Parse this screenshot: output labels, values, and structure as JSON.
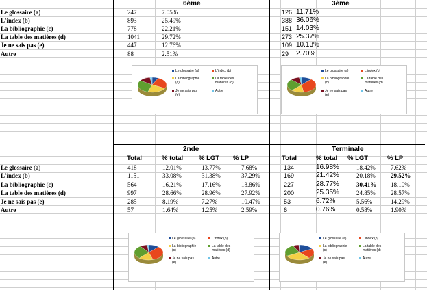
{
  "sections": {
    "sixieme": "6ème",
    "troisieme": "3ème",
    "seconde": "2nde",
    "terminale": "Terminale"
  },
  "row_labels": [
    "Le glossaire (a)",
    "L'index (b)",
    "La bibliographie (c)",
    "La table des matières (d)",
    "Je ne sais pas (e)",
    "Autre"
  ],
  "top": {
    "sixieme": [
      {
        "n": "247",
        "pct": "7.05%"
      },
      {
        "n": "893",
        "pct": "25.49%"
      },
      {
        "n": "778",
        "pct": "22.21%"
      },
      {
        "n": "1041",
        "pct": "29.72%"
      },
      {
        "n": "447",
        "pct": "12.76%"
      },
      {
        "n": "88",
        "pct": "2.51%"
      }
    ],
    "troisieme": [
      {
        "n": "126",
        "pct": "11.71%"
      },
      {
        "n": "388",
        "pct": "36.06%"
      },
      {
        "n": "151",
        "pct": "14.03%"
      },
      {
        "n": "273",
        "pct": "25.37%"
      },
      {
        "n": "109",
        "pct": "10.13%"
      },
      {
        "n": "29",
        "pct": "2.70%"
      }
    ]
  },
  "bottom_headers": {
    "seconde": [
      "Total",
      "% total",
      "% LGT",
      "% LP"
    ],
    "terminale": [
      "Total",
      "% total",
      "% LGT",
      "% LP"
    ]
  },
  "bottom": {
    "seconde": [
      {
        "total": "418",
        "pct_total": "12.01%",
        "lgt": "13.77%",
        "lp": "7.68%"
      },
      {
        "total": "1151",
        "pct_total": "33.08%",
        "lgt": "31.38%",
        "lp": "37.29%"
      },
      {
        "total": "564",
        "pct_total": "16.21%",
        "lgt": "17.16%",
        "lp": "13.86%"
      },
      {
        "total": "997",
        "pct_total": "28.66%",
        "lgt": "28.96%",
        "lp": "27.92%"
      },
      {
        "total": "285",
        "pct_total": "8.19%",
        "lgt": "7.27%",
        "lp": "10.47%"
      },
      {
        "total": "57",
        "pct_total": "1.64%",
        "lgt": "1.25%",
        "lp": "2.59%"
      }
    ],
    "terminale": [
      {
        "total": "134",
        "pct_total": "16.98%",
        "lgt": "18.42%",
        "lp": "7.62%"
      },
      {
        "total": "169",
        "pct_total": "21.42%",
        "lgt": "20.18%",
        "lp": "29.52%"
      },
      {
        "total": "227",
        "pct_total": "28.77%",
        "lgt": "30.41%",
        "lp": "18.10%"
      },
      {
        "total": "200",
        "pct_total": "25.35%",
        "lgt": "24.85%",
        "lp": "28.57%"
      },
      {
        "total": "53",
        "pct_total": "6.72%",
        "lgt": "5.56%",
        "lp": "14.29%"
      },
      {
        "total": "6",
        "pct_total": "0.76%",
        "lgt": "0.58%",
        "lp": "1.90%"
      }
    ]
  },
  "legend": {
    "a": "Le glossaire (a)",
    "b": "L'index (b)",
    "c1": "La bibliographie",
    "c2": "(c)",
    "d1": "La table des",
    "d2": "matières (d)",
    "e1": "Je ne sais pas",
    "e2": "(e)",
    "f": "Autre"
  },
  "colors": {
    "a": "#1f4e9a",
    "b": "#e8471d",
    "c": "#f3d046",
    "d": "#5f9e2f",
    "e": "#7a1020",
    "f": "#6ec4e8"
  },
  "chart_data": [
    {
      "type": "pie",
      "title": "",
      "categories": [
        "Le glossaire (a)",
        "L'index (b)",
        "La bibliographie (c)",
        "La table des matières (d)",
        "Je ne sais pas (e)",
        "Autre"
      ],
      "values": [
        7.05,
        25.49,
        22.21,
        29.72,
        12.76,
        2.51
      ]
    },
    {
      "type": "pie",
      "title": "",
      "categories": [
        "Le glossaire (a)",
        "L'index (b)",
        "La bibliographie (c)",
        "La table des matières (d)",
        "Je ne sais pas (e)",
        "Autre"
      ],
      "values": [
        11.71,
        36.06,
        14.03,
        25.37,
        10.13,
        2.7
      ]
    },
    {
      "type": "pie",
      "title": "",
      "categories": [
        "Le glossaire (a)",
        "L'index (b)",
        "La bibliographie (c)",
        "La table des matières (d)",
        "Je ne sais pas (e)",
        "Autre"
      ],
      "values": [
        12.01,
        33.08,
        16.21,
        28.66,
        8.19,
        1.64
      ]
    },
    {
      "type": "pie",
      "title": "",
      "categories": [
        "Le glossaire (a)",
        "L'index (b)",
        "La bibliographie (c)",
        "La table des matières (d)",
        "Je ne sais pas (e)",
        "Autre"
      ],
      "values": [
        16.98,
        21.42,
        28.77,
        25.35,
        6.72,
        0.76
      ]
    }
  ]
}
